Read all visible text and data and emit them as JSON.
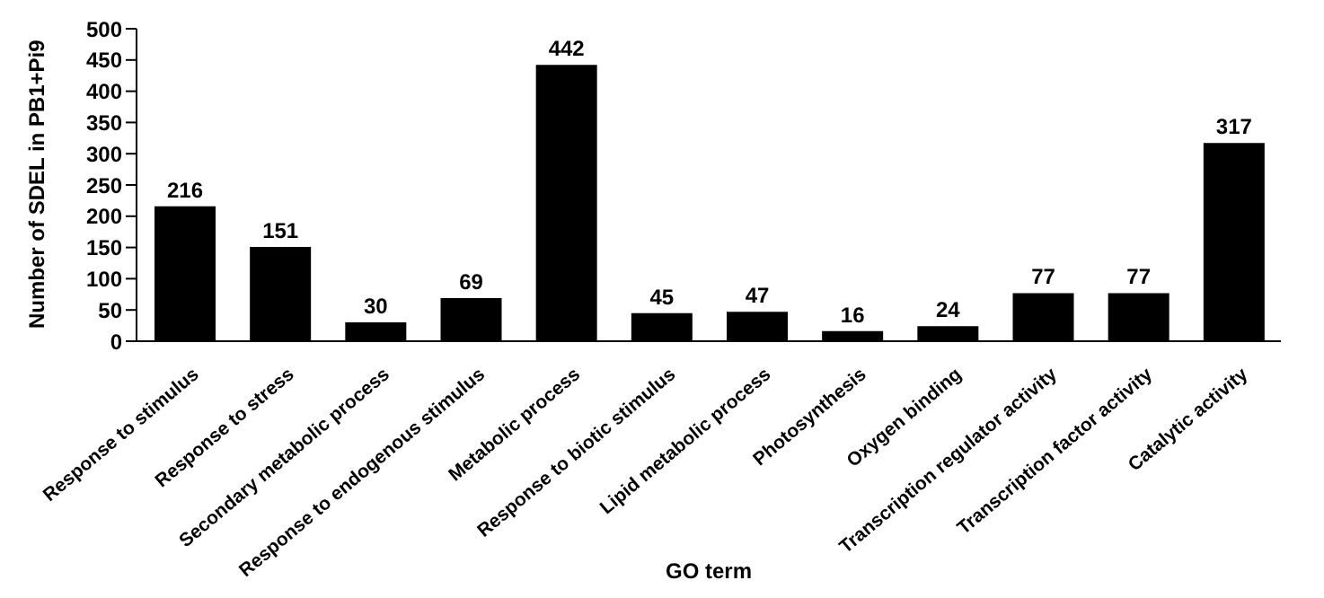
{
  "chart_data": {
    "type": "bar",
    "xlabel": "GO term",
    "ylabel": "Number of SDEL in PB1+Pi9",
    "categories": [
      "Response to stimulus",
      "Response to stress",
      "Secondary metabolic process",
      "Response to endogenous stimulus",
      "Metabolic process",
      "Response to biotic stimulus",
      "Lipid metabolic process",
      "Photosynthesis",
      "Oxygen binding",
      "Transcription regulator activity",
      "Transcription factor activity",
      "Catalytic activity"
    ],
    "values": [
      216,
      151,
      30,
      69,
      442,
      45,
      47,
      16,
      24,
      77,
      77,
      317
    ],
    "color": "#000000",
    "ylim": [
      0,
      500
    ],
    "yticks": [
      0,
      50,
      100,
      150,
      200,
      250,
      300,
      350,
      400,
      450,
      500
    ],
    "grid": false,
    "legend": false,
    "data_labels": true
  }
}
